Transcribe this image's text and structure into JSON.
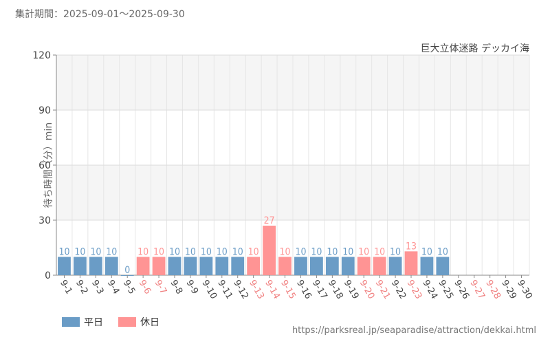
{
  "period_label": "集計期間：2025-09-01～2025-09-30",
  "source_url": "https://parksreal.jp/seaparadise/attraction/dekkai.html",
  "colors": {
    "weekday": "#6a9cc6",
    "holiday": "#ff9494",
    "holiday_tick": "#f08080"
  },
  "chart_data": {
    "type": "bar",
    "title": "巨大立体迷路 デッカイ海",
    "ylabel": "待ち時間（分）min",
    "xlabel": "",
    "ylim": [
      0,
      120
    ],
    "yticks": [
      0,
      30,
      60,
      90,
      120
    ],
    "grid": true,
    "legend_placement": "bottom-left",
    "categories": [
      "9-1",
      "9-2",
      "9-3",
      "9-4",
      "9-5",
      "9-6",
      "9-7",
      "9-8",
      "9-9",
      "9-10",
      "9-11",
      "9-12",
      "9-13",
      "9-14",
      "9-15",
      "9-16",
      "9-17",
      "9-18",
      "9-19",
      "9-20",
      "9-21",
      "9-22",
      "9-23",
      "9-24",
      "9-25",
      "9-26",
      "9-27",
      "9-28",
      "9-29",
      "9-30"
    ],
    "values": [
      10,
      10,
      10,
      10,
      0,
      10,
      10,
      10,
      10,
      10,
      10,
      10,
      10,
      27,
      10,
      10,
      10,
      10,
      10,
      10,
      10,
      10,
      13,
      10,
      10,
      null,
      null,
      null,
      null,
      null
    ],
    "day_type": [
      "weekday",
      "weekday",
      "weekday",
      "weekday",
      "weekday",
      "holiday",
      "holiday",
      "weekday",
      "weekday",
      "weekday",
      "weekday",
      "weekday",
      "holiday",
      "holiday",
      "holiday",
      "weekday",
      "weekday",
      "weekday",
      "weekday",
      "holiday",
      "holiday",
      "weekday",
      "holiday",
      "weekday",
      "weekday",
      "weekday",
      "holiday",
      "holiday",
      "weekday",
      "weekday"
    ],
    "series": [
      {
        "name": "平日",
        "key": "weekday"
      },
      {
        "name": "休日",
        "key": "holiday"
      }
    ]
  }
}
